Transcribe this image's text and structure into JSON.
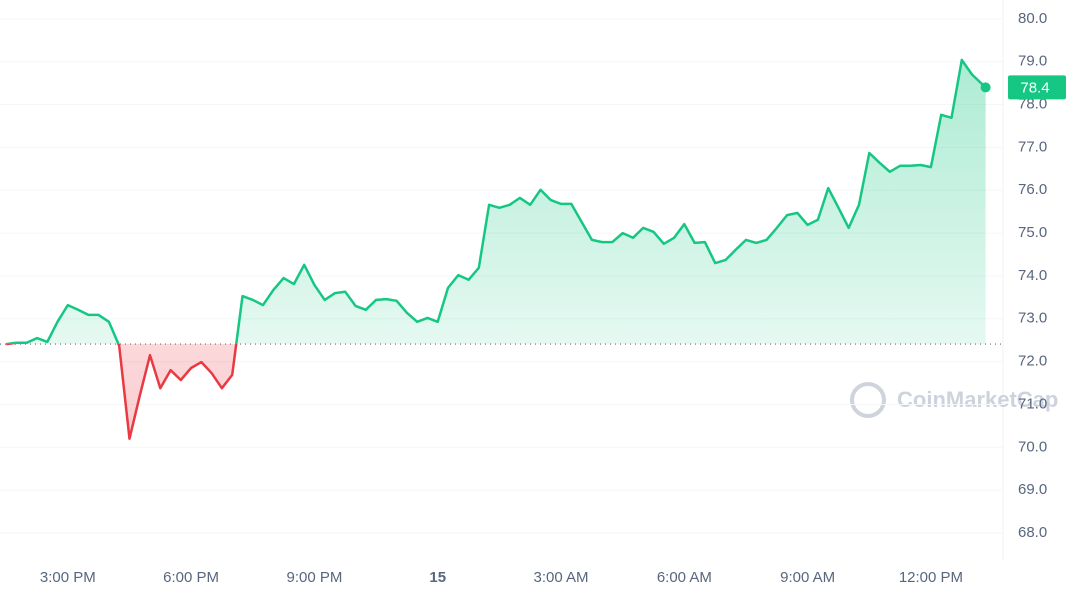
{
  "chart_data": {
    "type": "line",
    "watermark": "CoinMarketCap",
    "reference_value": 72.41,
    "xlim": [
      13.35,
      37.68
    ],
    "ylim": [
      67.44,
      80.44
    ],
    "xticks": [
      {
        "value": 15,
        "label": "3:00 PM"
      },
      {
        "value": 18,
        "label": "6:00 PM"
      },
      {
        "value": 21,
        "label": "9:00 PM"
      },
      {
        "value": 24,
        "label": "15"
      },
      {
        "value": 27,
        "label": "3:00 AM"
      },
      {
        "value": 30,
        "label": "6:00 AM"
      },
      {
        "value": 33,
        "label": "9:00 AM"
      },
      {
        "value": 36,
        "label": "12:00 PM"
      }
    ],
    "yticks": [
      {
        "value": 68,
        "label": "68.0"
      },
      {
        "value": 69,
        "label": "69.0"
      },
      {
        "value": 70,
        "label": "70.0"
      },
      {
        "value": 71,
        "label": "71.0"
      },
      {
        "value": 72,
        "label": "72.0"
      },
      {
        "value": 73,
        "label": "73.0"
      },
      {
        "value": 74,
        "label": "74.0"
      },
      {
        "value": 75,
        "label": "75.0"
      },
      {
        "value": 76,
        "label": "76.0"
      },
      {
        "value": 77,
        "label": "77.0"
      },
      {
        "value": 78,
        "label": "78.0"
      },
      {
        "value": 79,
        "label": "79.0"
      },
      {
        "value": 80,
        "label": "80.0"
      }
    ],
    "grid": true,
    "x": [
      13.5,
      13.75,
      14,
      14.25,
      14.5,
      14.75,
      15,
      15.25,
      15.5,
      15.75,
      16,
      16.25,
      16.5,
      16.75,
      17,
      17.25,
      17.5,
      17.75,
      18,
      18.25,
      18.5,
      18.75,
      19,
      19.25,
      19.5,
      19.75,
      20,
      20.25,
      20.5,
      20.75,
      21,
      21.25,
      21.5,
      21.75,
      22,
      22.25,
      22.5,
      22.75,
      23,
      23.25,
      23.5,
      23.75,
      24,
      24.25,
      24.5,
      24.75,
      25,
      25.25,
      25.5,
      25.75,
      26,
      26.25,
      26.5,
      26.75,
      27,
      27.25,
      27.5,
      27.75,
      28,
      28.25,
      28.5,
      28.75,
      29,
      29.25,
      29.5,
      29.75,
      30,
      30.25,
      30.5,
      30.75,
      31,
      31.25,
      31.5,
      31.75,
      32,
      32.25,
      32.5,
      32.75,
      33,
      33.25,
      33.5,
      33.75,
      34,
      34.25,
      34.5,
      34.75,
      35,
      35.25,
      35.5,
      35.75,
      36,
      36.25,
      36.5,
      36.75,
      37,
      37.33
    ],
    "series": [
      {
        "color_up": "#16c784",
        "color_down": "#ea3943",
        "values": [
          72.41,
          72.44,
          72.44,
          72.55,
          72.46,
          72.93,
          73.32,
          73.21,
          73.09,
          73.09,
          72.93,
          72.37,
          70.2,
          71.2,
          72.15,
          71.38,
          71.8,
          71.57,
          71.85,
          71.99,
          71.73,
          71.38,
          71.69,
          73.53,
          73.44,
          73.32,
          73.67,
          73.95,
          73.81,
          74.26,
          73.79,
          73.44,
          73.6,
          73.63,
          73.3,
          73.21,
          73.44,
          73.46,
          73.42,
          73.14,
          72.93,
          73.02,
          72.93,
          73.72,
          74.02,
          73.91,
          74.19,
          75.66,
          75.59,
          75.66,
          75.82,
          75.66,
          76.01,
          75.77,
          75.68,
          75.68,
          75.26,
          74.84,
          74.79,
          74.79,
          75.0,
          74.89,
          75.12,
          75.03,
          74.75,
          74.89,
          75.21,
          74.77,
          74.79,
          74.3,
          74.37,
          74.61,
          74.84,
          74.77,
          74.84,
          75.12,
          75.42,
          75.47,
          75.19,
          75.31,
          76.05,
          75.59,
          75.12,
          75.66,
          76.87,
          76.64,
          76.43,
          76.57,
          76.57,
          76.59,
          76.54,
          77.76,
          77.69,
          79.04,
          78.7,
          78.4
        ]
      }
    ]
  }
}
